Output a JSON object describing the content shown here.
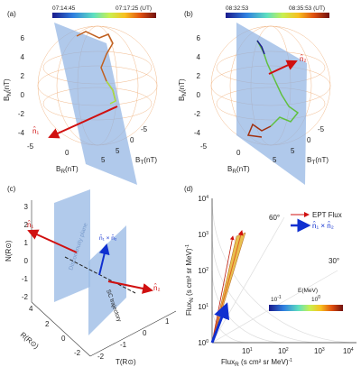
{
  "panel_a": {
    "label": "(a)",
    "time_start": "07:14:45",
    "time_end": "07:17:25 (UT)",
    "y_axis": {
      "main": "B",
      "sub": "N",
      "unit": "(nT)"
    },
    "yticks": [
      "6",
      "4",
      "2",
      "0",
      "-2",
      "-4"
    ],
    "x_axis": {
      "main": "B",
      "sub": "R",
      "unit": "(nT)"
    },
    "xticks": [
      "-5",
      "0",
      "5"
    ],
    "z_axis": {
      "main": "B",
      "sub": "T",
      "unit": "(nT)"
    },
    "zticks": [
      "5",
      "0",
      "-5"
    ],
    "vector": "n̂₁"
  },
  "panel_b": {
    "label": "(b)",
    "time_start": "08:32:53",
    "time_end": "08:35:53 (UT)",
    "y_axis": {
      "main": "B",
      "sub": "N",
      "unit": "(nT)"
    },
    "yticks": [
      "6",
      "4",
      "2",
      "0",
      "-2",
      "-4"
    ],
    "x_axis": {
      "main": "B",
      "sub": "R",
      "unit": "(nT)"
    },
    "xticks": [
      "-5",
      "0",
      "5"
    ],
    "z_axis": {
      "main": "B",
      "sub": "T",
      "unit": "(nT)"
    },
    "zticks": [
      "5",
      "0",
      "-5"
    ],
    "vector": "n̂₂"
  },
  "panel_c": {
    "label": "(c)",
    "y_axis": "N(R⊙)",
    "yticks": [
      "3",
      "2",
      "1",
      "0",
      "-1",
      "-2"
    ],
    "x_axis": "R(R⊙)",
    "xticks": [
      "4",
      "2",
      "0",
      "-2"
    ],
    "z_axis": "T(R⊙)",
    "zticks": [
      "-2",
      "-1",
      "0",
      "1"
    ],
    "plane_label": "Discontinuity plane",
    "trajectory_label": "SC trajectory",
    "vector_1": "n̂₁",
    "vector_cross": "n̂₁ × n̂₂",
    "vector_2": "n̂₂"
  },
  "panel_d": {
    "label": "(d)",
    "y_axis": {
      "main": "Flux",
      "sub": "N",
      "unit": " (s cm² sr MeV)",
      "exp": "-1"
    },
    "x_axis": {
      "main": "Flux",
      "sub": "R",
      "unit": " (s cm² sr MeV)",
      "exp": "-1"
    },
    "ticks": [
      {
        "base": "10",
        "exp": "0"
      },
      {
        "base": "10",
        "exp": "1"
      },
      {
        "base": "10",
        "exp": "2"
      },
      {
        "base": "10",
        "exp": "3"
      },
      {
        "base": "10",
        "exp": "4"
      }
    ],
    "angle_60": "60°",
    "angle_30": "30°",
    "legend_flux": "EPT Flux",
    "legend_cross": "n̂₁ × n̂₂",
    "colorbar_label": "E(MeV)",
    "colorbar_ticks": [
      {
        "base": "10",
        "exp": "-1"
      },
      {
        "base": "10",
        "exp": "0"
      }
    ]
  }
}
